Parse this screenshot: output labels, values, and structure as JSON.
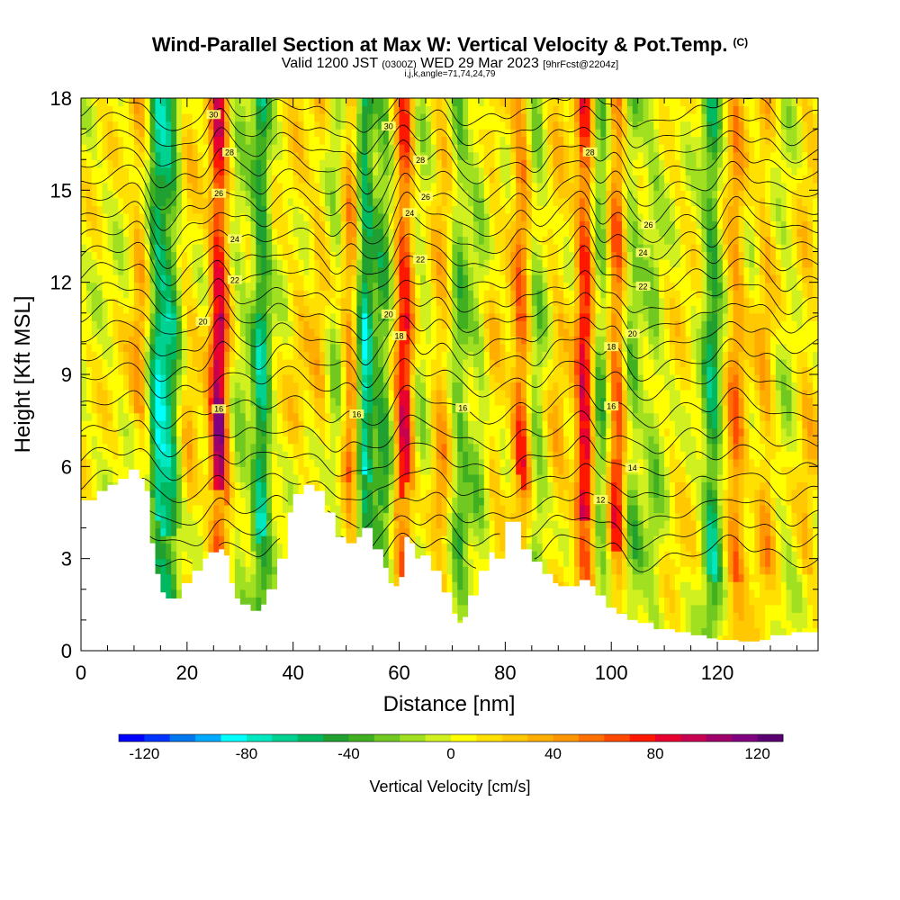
{
  "title": {
    "main": "Wind-Parallel Section at Max W: Vertical Velocity & Pot.Temp.",
    "copyright": "(C)",
    "valid_prefix": "Valid 1200 JST",
    "valid_utc": "(0300Z)",
    "valid_date": "WED 29 Mar 2023",
    "forecast": "[9hrFcst@2204z]",
    "indices": "i,j,k,angle=71,74,24,79"
  },
  "chart_data": {
    "type": "heatmap",
    "xlabel": "Distance [nm]",
    "ylabel": "Height [Kft MSL]",
    "xlim": [
      0,
      139
    ],
    "ylim": [
      0,
      18
    ],
    "xticks": [
      0,
      20,
      40,
      60,
      80,
      100,
      120
    ],
    "yticks": [
      0,
      3,
      6,
      9,
      12,
      15,
      18
    ],
    "colorbar": {
      "label": "Vertical Velocity [cm/s]",
      "range": [
        -130,
        130
      ],
      "step": 10,
      "ticks": [
        -120,
        -80,
        -40,
        0,
        40,
        80,
        120
      ],
      "colors": [
        "#0000ff",
        "#0033ff",
        "#0077ee",
        "#00aaff",
        "#00ffff",
        "#00e8c0",
        "#00d090",
        "#00b860",
        "#20a030",
        "#40b020",
        "#70c820",
        "#a0e020",
        "#d0f020",
        "#ffff00",
        "#ffe000",
        "#ffc800",
        "#ffae00",
        "#ff9600",
        "#ff7000",
        "#ff4800",
        "#ff1800",
        "#e80030",
        "#c80050",
        "#a0006a",
        "#800080",
        "#5a0070"
      ]
    },
    "w_peaks": [
      {
        "x": 11,
        "w": 36
      },
      {
        "x": 14.5,
        "w": -80
      },
      {
        "x": 17,
        "w": -60
      },
      {
        "x": 20.5,
        "w": 18
      },
      {
        "x": 26,
        "w": 110
      },
      {
        "x": 30,
        "w": -20
      },
      {
        "x": 34,
        "w": -75
      },
      {
        "x": 41,
        "w": 14
      },
      {
        "x": 45,
        "w": 22
      },
      {
        "x": 48,
        "w": -22
      },
      {
        "x": 51,
        "w": 55
      },
      {
        "x": 53.5,
        "w": -90
      },
      {
        "x": 57,
        "w": -50
      },
      {
        "x": 61,
        "w": 90
      },
      {
        "x": 64,
        "w": -18
      },
      {
        "x": 68,
        "w": 32
      },
      {
        "x": 71.5,
        "w": -40
      },
      {
        "x": 75,
        "w": -22
      },
      {
        "x": 78,
        "w": 18
      },
      {
        "x": 83,
        "w": 65
      },
      {
        "x": 86,
        "w": -30
      },
      {
        "x": 90,
        "w": 22
      },
      {
        "x": 95,
        "w": 95
      },
      {
        "x": 98,
        "w": -45
      },
      {
        "x": 101,
        "w": 70
      },
      {
        "x": 104,
        "w": -35
      },
      {
        "x": 108,
        "w": -25
      },
      {
        "x": 113,
        "w": 8
      },
      {
        "x": 119,
        "w": -65
      },
      {
        "x": 123.5,
        "w": 50
      },
      {
        "x": 129,
        "w": 30
      },
      {
        "x": 133,
        "w": -12
      },
      {
        "x": 137,
        "w": 22
      }
    ],
    "terrain_kft": [
      [
        0,
        4.9
      ],
      [
        3,
        5.2
      ],
      [
        5,
        5.4
      ],
      [
        7,
        5.6
      ],
      [
        9,
        5.9
      ],
      [
        11,
        5.6
      ],
      [
        12,
        5.2
      ],
      [
        13,
        3.5
      ],
      [
        14,
        2.5
      ],
      [
        15,
        1.9
      ],
      [
        16,
        1.7
      ],
      [
        18,
        1.7
      ],
      [
        19,
        2.2
      ],
      [
        21,
        2.6
      ],
      [
        23,
        3.0
      ],
      [
        24,
        3.2
      ],
      [
        26,
        3.3
      ],
      [
        27,
        3.1
      ],
      [
        28,
        2.2
      ],
      [
        29,
        1.7
      ],
      [
        30,
        1.5
      ],
      [
        32,
        1.3
      ],
      [
        34,
        1.5
      ],
      [
        35,
        2.0
      ],
      [
        37,
        3.0
      ],
      [
        39,
        4.5
      ],
      [
        40,
        5.1
      ],
      [
        42,
        5.4
      ],
      [
        44,
        5.2
      ],
      [
        46,
        4.5
      ],
      [
        48,
        3.7
      ],
      [
        50,
        3.5
      ],
      [
        52,
        3.7
      ],
      [
        53,
        4.0
      ],
      [
        55,
        3.3
      ],
      [
        57,
        2.7
      ],
      [
        58,
        2.2
      ],
      [
        59,
        2.1
      ],
      [
        60,
        2.4
      ],
      [
        61,
        3.7
      ],
      [
        62,
        3.5
      ],
      [
        63,
        3.0
      ],
      [
        64,
        3.1
      ],
      [
        66,
        2.6
      ],
      [
        68,
        1.9
      ],
      [
        70,
        1.2
      ],
      [
        71,
        0.9
      ],
      [
        72,
        1.1
      ],
      [
        73,
        1.8
      ],
      [
        75,
        2.6
      ],
      [
        77,
        3.2
      ],
      [
        78,
        3.0
      ],
      [
        80,
        4.2
      ],
      [
        82,
        4.2
      ],
      [
        83,
        3.3
      ],
      [
        85,
        2.9
      ],
      [
        87,
        2.5
      ],
      [
        89,
        2.2
      ],
      [
        90,
        2.1
      ],
      [
        92,
        2.1
      ],
      [
        94,
        2.3
      ],
      [
        96,
        2.1
      ],
      [
        97,
        1.8
      ],
      [
        99,
        1.4
      ],
      [
        101,
        1.2
      ],
      [
        103,
        1.0
      ],
      [
        105,
        0.9
      ],
      [
        108,
        0.7
      ],
      [
        112,
        0.6
      ],
      [
        115,
        0.5
      ],
      [
        118,
        0.4
      ],
      [
        120,
        0.35
      ],
      [
        124,
        0.3
      ],
      [
        128,
        0.35
      ],
      [
        130,
        0.5
      ],
      [
        134,
        0.6
      ],
      [
        139,
        0.6
      ]
    ],
    "theta_isolines": [
      {
        "level": 10,
        "y": 3.2,
        "labels": []
      },
      {
        "level": 11,
        "y": 3.9,
        "labels": []
      },
      {
        "level": 12,
        "y": 4.6,
        "labels": [
          {
            "x": 98,
            "text": "12"
          }
        ]
      },
      {
        "level": 13,
        "y": 5.4,
        "labels": []
      },
      {
        "level": 14,
        "y": 6.2,
        "labels": [
          {
            "x": 104,
            "text": "14"
          }
        ]
      },
      {
        "level": 15,
        "y": 7.0,
        "labels": []
      },
      {
        "level": 16,
        "y": 7.9,
        "labels": [
          {
            "x": 26,
            "text": "16"
          },
          {
            "x": 52,
            "text": "16"
          },
          {
            "x": 72,
            "text": "16"
          },
          {
            "x": 100,
            "text": "16"
          }
        ]
      },
      {
        "level": 17,
        "y": 8.8,
        "labels": []
      },
      {
        "level": 18,
        "y": 9.5,
        "labels": [
          {
            "x": 60,
            "text": "18"
          },
          {
            "x": 100,
            "text": "18"
          }
        ]
      },
      {
        "level": 19,
        "y": 10.2,
        "labels": []
      },
      {
        "level": 20,
        "y": 10.9,
        "labels": [
          {
            "x": 23,
            "text": "20"
          },
          {
            "x": 58,
            "text": "20"
          },
          {
            "x": 104,
            "text": "20"
          }
        ]
      },
      {
        "level": 21,
        "y": 11.5,
        "labels": []
      },
      {
        "level": 22,
        "y": 12.2,
        "labels": [
          {
            "x": 29,
            "text": "22"
          },
          {
            "x": 64,
            "text": "22"
          },
          {
            "x": 106,
            "text": "22"
          }
        ]
      },
      {
        "level": 23,
        "y": 12.8,
        "labels": []
      },
      {
        "level": 24,
        "y": 13.4,
        "labels": [
          {
            "x": 29,
            "text": "24"
          },
          {
            "x": 62,
            "text": "24"
          },
          {
            "x": 106,
            "text": "24"
          }
        ]
      },
      {
        "level": 25,
        "y": 14.0,
        "labels": []
      },
      {
        "level": 26,
        "y": 14.6,
        "labels": [
          {
            "x": 26,
            "text": "26"
          },
          {
            "x": 65,
            "text": "26"
          },
          {
            "x": 107,
            "text": "26"
          }
        ]
      },
      {
        "level": 27,
        "y": 15.2,
        "labels": []
      },
      {
        "level": 28,
        "y": 15.8,
        "labels": [
          {
            "x": 28,
            "text": "28"
          },
          {
            "x": 64,
            "text": "28"
          },
          {
            "x": 96,
            "text": "28"
          }
        ]
      },
      {
        "level": 29,
        "y": 16.4,
        "labels": []
      },
      {
        "level": 30,
        "y": 17.0,
        "labels": [
          {
            "x": 25,
            "text": "30"
          },
          {
            "x": 58,
            "text": "30"
          }
        ]
      },
      {
        "level": 31,
        "y": 17.6,
        "labels": []
      }
    ]
  }
}
